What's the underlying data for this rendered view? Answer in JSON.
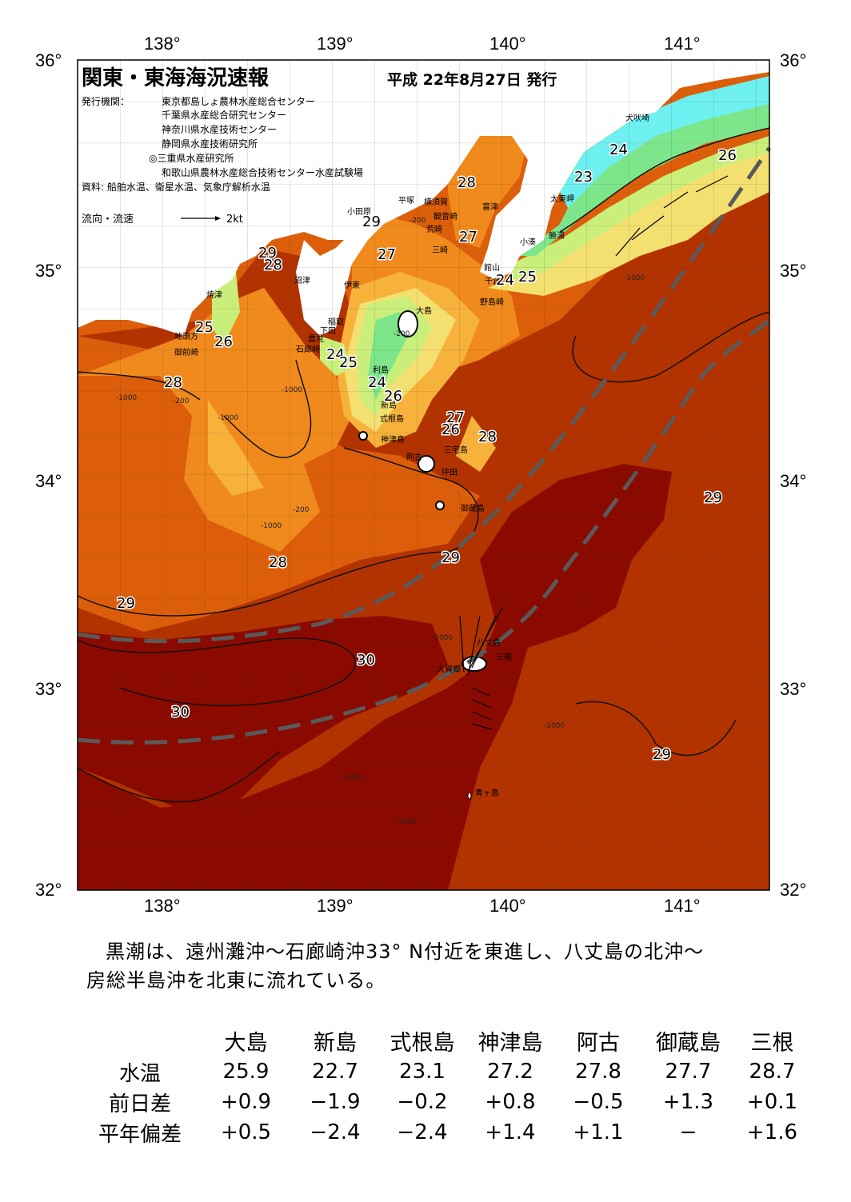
{
  "map": {
    "title": "関東・東海海況速報",
    "issue_date": "平成 22年8月27日 発行",
    "issuers_label": "発行機関：",
    "issuers": [
      "東京都島しょ農林水産総合センター",
      "千葉県水産総合研究センター",
      "神奈川県水産技術センター",
      "静岡県水産技術研究所",
      "◎三重県水産研究所",
      "和歌山県農林水産総合技術センター水産試験場"
    ],
    "source": "資料: 船舶水温、衛星水温、気象庁解析水温",
    "flow_legend_label": "流向・流速",
    "flow_legend_unit": "2kt",
    "lon_labels": [
      "138°",
      "139°",
      "140°",
      "141°"
    ],
    "lat_labels": [
      "36°",
      "35°",
      "34°",
      "33°",
      "32°"
    ],
    "place_names": [
      "犬吠埼",
      "太東岬",
      "勝浦",
      "小湊",
      "館山",
      "千倉",
      "野島崎",
      "富津",
      "横須賀",
      "観音崎",
      "荒崎",
      "三崎",
      "平塚",
      "小田原",
      "伊東",
      "稲取",
      "下田",
      "雲見",
      "石廊崎",
      "沼津",
      "焼津",
      "地頭方",
      "御前崎",
      "大島",
      "利島",
      "新島",
      "式根島",
      "神津島",
      "三宅島",
      "阿古",
      "坪田",
      "御蔵島",
      "八丈島",
      "三根",
      "大賀郷",
      "青ヶ島"
    ],
    "isotherm_labels": [
      "24",
      "26",
      "23",
      "28",
      "29",
      "27",
      "25",
      "30"
    ],
    "depth_labels": [
      "-200",
      "-1000"
    ],
    "colors": {
      "t30": "#8b0a00",
      "t29": "#b33300",
      "t28": "#dd5e0a",
      "t27": "#f08a1c",
      "t26": "#f7b23c",
      "t25": "#f4e070",
      "t24": "#c9ef7a",
      "t23": "#7ee68a",
      "t22": "#6ef0f0",
      "land": "#ffffff",
      "kuroshio_axis": "#5a5a5a"
    }
  },
  "summary": {
    "line1": "黒潮は、遠州灘沖～石廊崎沖33° N付近を東進し、八丈島の北沖～",
    "line2": "房総半島沖を北東に流れている。"
  },
  "table": {
    "stations": [
      "大島",
      "新島",
      "式根島",
      "神津島",
      "阿古",
      "御蔵島",
      "三根"
    ],
    "rows": [
      {
        "label": "水温",
        "values": [
          "25.9",
          "22.7",
          "23.1",
          "27.2",
          "27.8",
          "27.7",
          "28.7"
        ]
      },
      {
        "label": "前日差",
        "values": [
          "+0.9",
          "−1.9",
          "−0.2",
          "+0.8",
          "−0.5",
          "+1.3",
          "+0.1"
        ]
      },
      {
        "label": "平年偏差",
        "values": [
          "+0.5",
          "−2.4",
          "−2.4",
          "+1.4",
          "+1.1",
          "−",
          "+1.6"
        ]
      }
    ]
  }
}
